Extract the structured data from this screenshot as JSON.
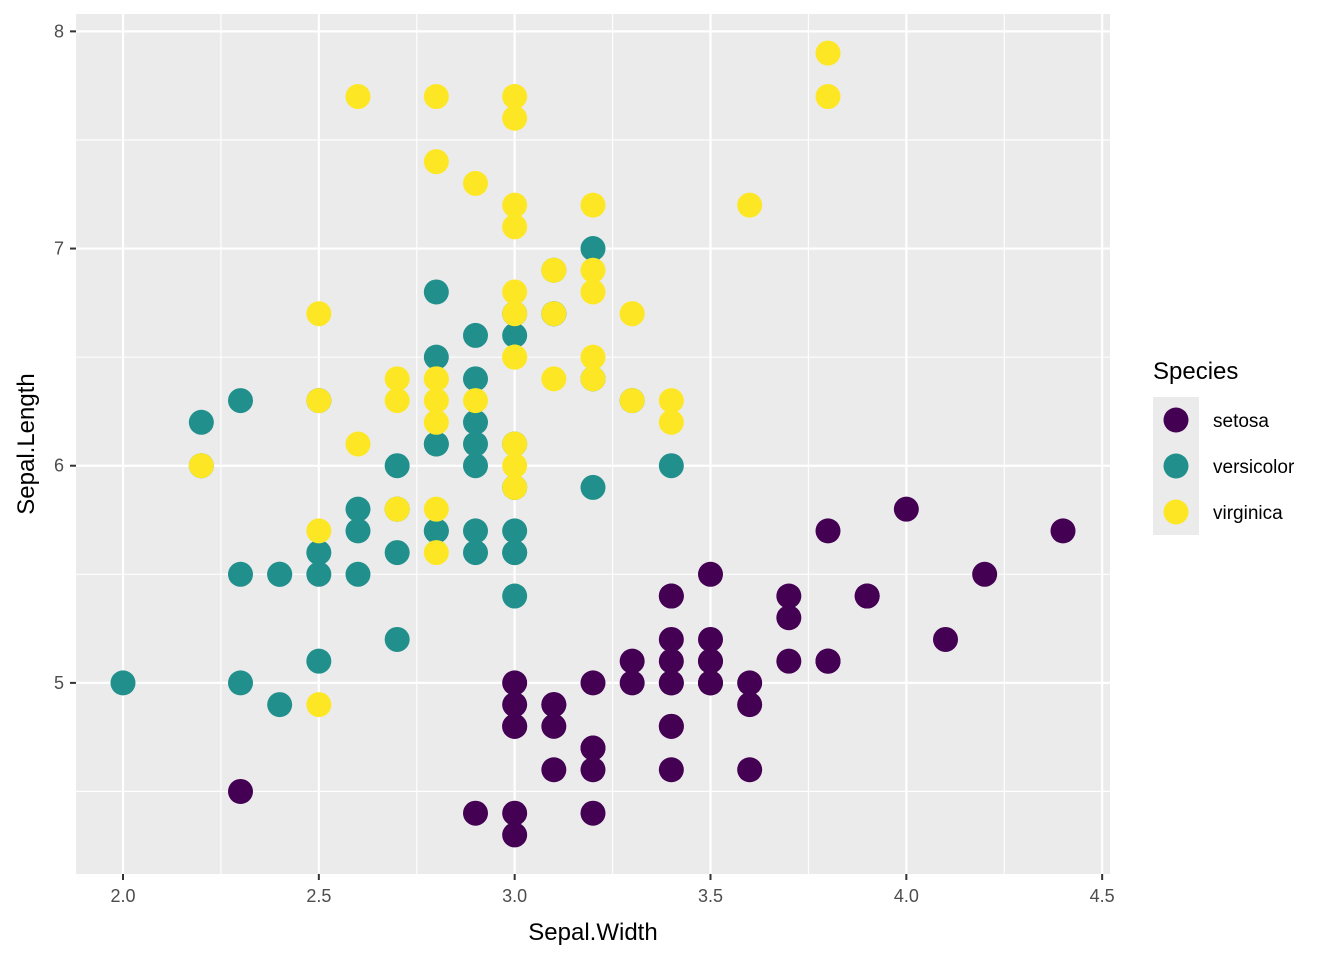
{
  "chart_data": {
    "type": "scatter",
    "xlabel": "Sepal.Width",
    "ylabel": "Sepal.Length",
    "xlim": [
      1.88,
      4.52
    ],
    "ylim": [
      4.12,
      8.08
    ],
    "x_ticks": [
      "2.0",
      "2.5",
      "3.0",
      "3.5",
      "4.0",
      "4.5"
    ],
    "x_tick_values": [
      2.0,
      2.5,
      3.0,
      3.5,
      4.0,
      4.5
    ],
    "y_ticks": [
      "5",
      "6",
      "7",
      "8"
    ],
    "y_tick_values": [
      5,
      6,
      7,
      8
    ],
    "grid": true,
    "legend": {
      "title": "Species",
      "placement": "right"
    },
    "series": [
      {
        "name": "setosa",
        "color": "#440154",
        "points": [
          [
            3.5,
            5.1
          ],
          [
            3.0,
            4.9
          ],
          [
            3.2,
            4.7
          ],
          [
            3.1,
            4.6
          ],
          [
            3.6,
            5.0
          ],
          [
            3.9,
            5.4
          ],
          [
            3.4,
            4.6
          ],
          [
            3.4,
            5.0
          ],
          [
            2.9,
            4.4
          ],
          [
            3.1,
            4.9
          ],
          [
            3.7,
            5.4
          ],
          [
            3.4,
            4.8
          ],
          [
            3.0,
            4.8
          ],
          [
            3.0,
            4.3
          ],
          [
            4.0,
            5.8
          ],
          [
            4.4,
            5.7
          ],
          [
            3.9,
            5.4
          ],
          [
            3.5,
            5.1
          ],
          [
            3.8,
            5.7
          ],
          [
            3.8,
            5.1
          ],
          [
            3.4,
            5.4
          ],
          [
            3.7,
            5.1
          ],
          [
            3.6,
            4.6
          ],
          [
            3.3,
            5.1
          ],
          [
            3.4,
            4.8
          ],
          [
            3.0,
            5.0
          ],
          [
            3.4,
            5.0
          ],
          [
            3.5,
            5.2
          ],
          [
            3.4,
            5.2
          ],
          [
            3.2,
            4.7
          ],
          [
            3.1,
            4.8
          ],
          [
            3.4,
            5.4
          ],
          [
            4.1,
            5.2
          ],
          [
            4.2,
            5.5
          ],
          [
            3.1,
            4.9
          ],
          [
            3.2,
            5.0
          ],
          [
            3.5,
            5.5
          ],
          [
            3.6,
            4.9
          ],
          [
            3.0,
            4.4
          ],
          [
            3.4,
            5.1
          ],
          [
            3.5,
            5.0
          ],
          [
            2.3,
            4.5
          ],
          [
            3.2,
            4.4
          ],
          [
            3.5,
            5.0
          ],
          [
            3.8,
            5.1
          ],
          [
            3.0,
            4.8
          ],
          [
            3.8,
            5.1
          ],
          [
            3.2,
            4.6
          ],
          [
            3.7,
            5.3
          ],
          [
            3.3,
            5.0
          ]
        ]
      },
      {
        "name": "versicolor",
        "color": "#21908C",
        "points": [
          [
            3.2,
            7.0
          ],
          [
            3.2,
            6.4
          ],
          [
            3.1,
            6.9
          ],
          [
            2.3,
            5.5
          ],
          [
            2.8,
            6.5
          ],
          [
            2.8,
            5.7
          ],
          [
            3.3,
            6.3
          ],
          [
            2.4,
            4.9
          ],
          [
            2.9,
            6.6
          ],
          [
            2.7,
            5.2
          ],
          [
            2.0,
            5.0
          ],
          [
            3.0,
            5.9
          ],
          [
            2.2,
            6.0
          ],
          [
            2.9,
            6.1
          ],
          [
            2.9,
            5.6
          ],
          [
            3.1,
            6.7
          ],
          [
            3.0,
            5.6
          ],
          [
            2.7,
            5.8
          ],
          [
            2.2,
            6.2
          ],
          [
            2.5,
            5.6
          ],
          [
            3.2,
            5.9
          ],
          [
            2.8,
            6.1
          ],
          [
            2.5,
            6.3
          ],
          [
            2.8,
            6.1
          ],
          [
            2.9,
            6.4
          ],
          [
            3.0,
            6.6
          ],
          [
            2.8,
            6.8
          ],
          [
            3.0,
            6.7
          ],
          [
            2.9,
            6.0
          ],
          [
            2.6,
            5.7
          ],
          [
            2.4,
            5.5
          ],
          [
            2.4,
            5.5
          ],
          [
            2.7,
            5.8
          ],
          [
            2.7,
            6.0
          ],
          [
            3.0,
            5.4
          ],
          [
            3.4,
            6.0
          ],
          [
            3.1,
            6.7
          ],
          [
            2.3,
            6.3
          ],
          [
            3.0,
            5.6
          ],
          [
            2.5,
            5.5
          ],
          [
            2.6,
            5.5
          ],
          [
            3.0,
            6.1
          ],
          [
            2.6,
            5.8
          ],
          [
            2.3,
            5.0
          ],
          [
            2.7,
            5.6
          ],
          [
            3.0,
            5.7
          ],
          [
            2.9,
            5.7
          ],
          [
            2.9,
            6.2
          ],
          [
            2.5,
            5.1
          ],
          [
            2.8,
            5.7
          ]
        ]
      },
      {
        "name": "virginica",
        "color": "#FDE725",
        "points": [
          [
            3.3,
            6.3
          ],
          [
            2.7,
            5.8
          ],
          [
            3.0,
            7.1
          ],
          [
            2.9,
            6.3
          ],
          [
            3.0,
            6.5
          ],
          [
            3.0,
            7.6
          ],
          [
            2.5,
            4.9
          ],
          [
            2.9,
            7.3
          ],
          [
            2.5,
            6.7
          ],
          [
            3.6,
            7.2
          ],
          [
            3.2,
            6.5
          ],
          [
            2.7,
            6.4
          ],
          [
            3.0,
            6.8
          ],
          [
            2.5,
            5.7
          ],
          [
            2.8,
            5.8
          ],
          [
            3.2,
            6.4
          ],
          [
            3.0,
            6.5
          ],
          [
            3.8,
            7.7
          ],
          [
            2.6,
            7.7
          ],
          [
            2.2,
            6.0
          ],
          [
            3.2,
            6.9
          ],
          [
            2.8,
            5.6
          ],
          [
            2.8,
            7.7
          ],
          [
            2.7,
            6.3
          ],
          [
            3.3,
            6.7
          ],
          [
            3.2,
            7.2
          ],
          [
            2.8,
            6.2
          ],
          [
            3.0,
            6.1
          ],
          [
            2.8,
            6.4
          ],
          [
            3.0,
            7.2
          ],
          [
            2.8,
            7.4
          ],
          [
            3.8,
            7.9
          ],
          [
            2.8,
            6.4
          ],
          [
            2.8,
            6.3
          ],
          [
            2.6,
            6.1
          ],
          [
            3.0,
            7.7
          ],
          [
            3.4,
            6.3
          ],
          [
            3.1,
            6.4
          ],
          [
            3.0,
            6.0
          ],
          [
            3.1,
            6.9
          ],
          [
            3.1,
            6.7
          ],
          [
            3.1,
            6.9
          ],
          [
            2.7,
            5.8
          ],
          [
            3.2,
            6.8
          ],
          [
            3.3,
            6.7
          ],
          [
            3.0,
            6.7
          ],
          [
            2.5,
            6.3
          ],
          [
            3.0,
            6.5
          ],
          [
            3.4,
            6.2
          ],
          [
            3.0,
            5.9
          ]
        ]
      }
    ]
  }
}
